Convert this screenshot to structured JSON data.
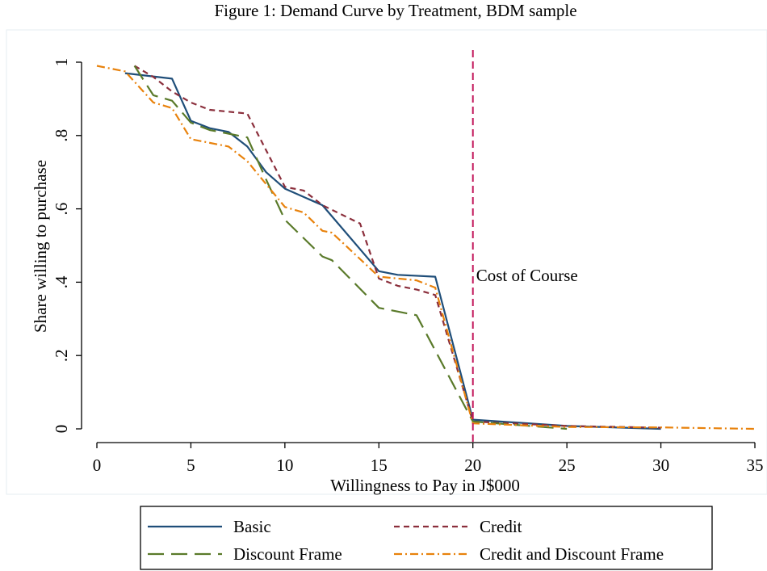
{
  "chart_data": {
    "type": "line",
    "title": "Figure 1: Demand Curve by Treatment, BDM sample",
    "xlabel": "Willingness to Pay in J$000",
    "ylabel": "Share willing to purchase",
    "xlim": [
      0,
      35
    ],
    "ylim": [
      0,
      1
    ],
    "x_ticks": [
      0,
      5,
      10,
      15,
      20,
      25,
      30,
      35
    ],
    "y_ticks": [
      0,
      0.2,
      0.4,
      0.6,
      0.8,
      1
    ],
    "y_tick_labels": [
      "0",
      ".2",
      ".4",
      ".6",
      ".8",
      "1"
    ],
    "grid": false,
    "legend_position": "bottom",
    "series": [
      {
        "name": "Basic",
        "color": "#1f4e79",
        "dash": "solid",
        "points": [
          [
            1.5,
            0.97
          ],
          [
            4,
            0.955
          ],
          [
            5,
            0.84
          ],
          [
            6,
            0.82
          ],
          [
            7,
            0.81
          ],
          [
            8,
            0.77
          ],
          [
            9,
            0.7
          ],
          [
            10,
            0.655
          ],
          [
            12,
            0.61
          ],
          [
            15,
            0.43
          ],
          [
            16,
            0.42
          ],
          [
            18,
            0.415
          ],
          [
            20,
            0.025
          ],
          [
            25,
            0.008
          ],
          [
            30,
            0.0
          ]
        ]
      },
      {
        "name": "Credit",
        "color": "#8b2f3c",
        "dash": "shortdash",
        "points": [
          [
            2,
            0.99
          ],
          [
            3,
            0.96
          ],
          [
            4,
            0.92
          ],
          [
            5,
            0.89
          ],
          [
            6,
            0.87
          ],
          [
            8,
            0.86
          ],
          [
            10,
            0.66
          ],
          [
            11,
            0.65
          ],
          [
            12,
            0.61
          ],
          [
            14,
            0.56
          ],
          [
            15,
            0.41
          ],
          [
            16,
            0.39
          ],
          [
            17,
            0.38
          ],
          [
            18,
            0.365
          ],
          [
            20,
            0.02
          ],
          [
            25,
            0.008
          ],
          [
            30,
            0.003
          ]
        ]
      },
      {
        "name": "Discount Frame",
        "color": "#5a7a2a",
        "dash": "longdash",
        "points": [
          [
            2,
            0.99
          ],
          [
            3,
            0.91
          ],
          [
            4,
            0.895
          ],
          [
            5,
            0.835
          ],
          [
            6,
            0.815
          ],
          [
            7,
            0.805
          ],
          [
            7.5,
            0.8
          ],
          [
            8,
            0.795
          ],
          [
            9,
            0.68
          ],
          [
            10,
            0.57
          ],
          [
            12,
            0.47
          ],
          [
            12.5,
            0.46
          ],
          [
            15,
            0.33
          ],
          [
            17,
            0.31
          ],
          [
            20,
            0.02
          ],
          [
            25,
            0.0
          ]
        ]
      },
      {
        "name": "Credit and Discount Frame",
        "color": "#e8820c",
        "dash": "dashdot",
        "points": [
          [
            0,
            0.99
          ],
          [
            1.5,
            0.975
          ],
          [
            3,
            0.89
          ],
          [
            4,
            0.875
          ],
          [
            5,
            0.79
          ],
          [
            7,
            0.77
          ],
          [
            8,
            0.73
          ],
          [
            10,
            0.605
          ],
          [
            11,
            0.59
          ],
          [
            12,
            0.54
          ],
          [
            12.5,
            0.535
          ],
          [
            15,
            0.415
          ],
          [
            17,
            0.405
          ],
          [
            18,
            0.385
          ],
          [
            20,
            0.015
          ],
          [
            25,
            0.005
          ],
          [
            30,
            0.004
          ],
          [
            35,
            0.0
          ]
        ]
      }
    ],
    "annotations": [
      {
        "x": 20,
        "type": "vline",
        "label": "Cost of Course",
        "color": "#c2185b",
        "dash": "dash"
      }
    ]
  }
}
